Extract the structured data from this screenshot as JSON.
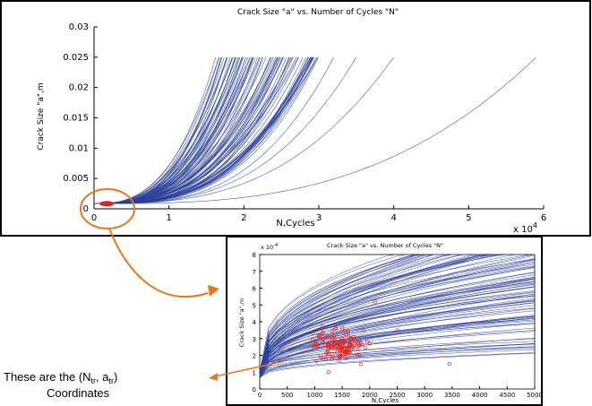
{
  "chart_data": [
    {
      "type": "line",
      "title": "Crack Size \"a\" vs. Number of Cycles \"N\"",
      "xlabel": "N,Cycles",
      "ylabel": "Crack Size \"a\",m",
      "xlim": [
        0,
        60000
      ],
      "ylim": [
        0,
        0.03
      ],
      "x_multiplier_label": "x 10",
      "x_multiplier_exp": "4",
      "xticks": [
        "0",
        "1",
        "2",
        "3",
        "4",
        "5",
        "6"
      ],
      "yticks": [
        "0",
        "0.005",
        "0.01",
        "0.015",
        "0.02",
        "0.025",
        "0.03"
      ],
      "a0": 0.00085,
      "a_final": 0.025,
      "final_cycles_range": [
        16000,
        30000
      ],
      "outlier_final_cycles": [
        32000,
        35000,
        40000,
        59000
      ],
      "series_color": "#2c3f9a",
      "highlight_color": "#e8201c"
    },
    {
      "type": "line",
      "title": "Crack Size \"a\" vs. Number of Cycles \"N\"",
      "xlabel": "N,Cycles",
      "ylabel": "Crack Size \"a\",m",
      "xlim": [
        0,
        5000
      ],
      "ylim": [
        0,
        0.0008
      ],
      "y_multiplier_label": "x 10",
      "y_multiplier_exp": "-4",
      "xticks": [
        "0",
        "500",
        "1000",
        "1500",
        "2000",
        "2500",
        "3000",
        "3500",
        "4000",
        "4500",
        "5000"
      ],
      "yticks": [
        "0",
        "1",
        "2",
        "3",
        "4",
        "5",
        "6",
        "7",
        "8"
      ],
      "transition_points_region": {
        "N_center": 1450,
        "a_center": 0.00026
      },
      "series_color": "#2c3f9a",
      "marker_color": "#e8201c"
    }
  ],
  "annotation": {
    "line1_prefix": "These are the (N",
    "sub1": "tr",
    "mid": ", a",
    "sub2": "tr",
    "line1_suffix": ")",
    "line2": "Coordinates",
    "color": "#e87722"
  }
}
